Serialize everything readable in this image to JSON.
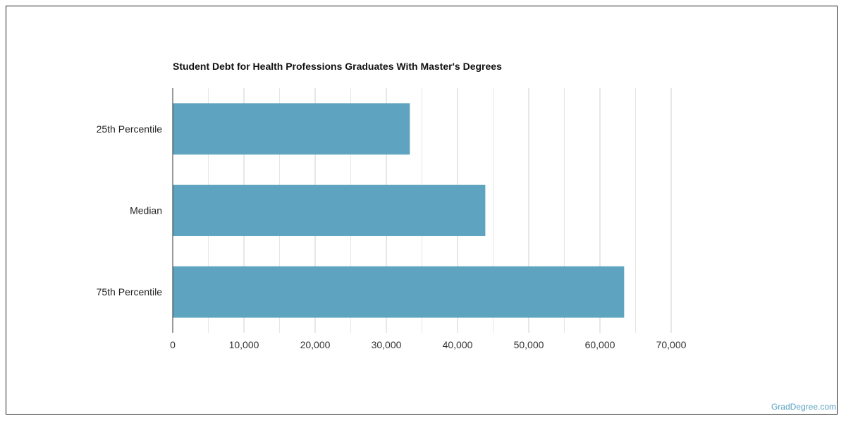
{
  "chart_data": {
    "type": "bar",
    "orientation": "horizontal",
    "title": "Student Debt for Health Professions Graduates With Master's Degrees",
    "categories": [
      "25th Percentile",
      "Median",
      "75th Percentile"
    ],
    "values": [
      33300,
      43900,
      63400
    ],
    "xlabel": "",
    "ylabel": "",
    "xlim": [
      0,
      70000
    ],
    "x_ticks": [
      "0",
      "10,000",
      "20,000",
      "30,000",
      "40,000",
      "50,000",
      "60,000",
      "70,000"
    ],
    "grid": true,
    "legend": "none",
    "colors": {
      "bar": "#5ea3bf",
      "grid": "#d6d6d6",
      "axis": "#333333",
      "tick_text": "#333333",
      "category_text": "#222222"
    }
  },
  "watermark": "GradDegree.com"
}
